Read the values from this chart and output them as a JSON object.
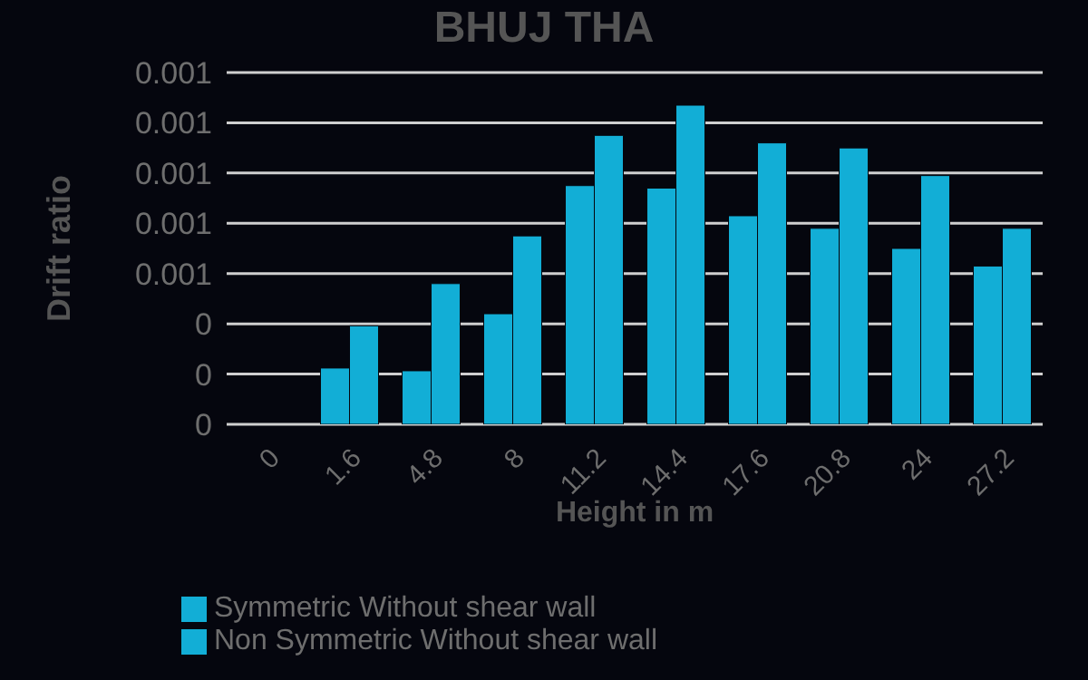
{
  "chart_data": {
    "type": "bar",
    "title": "BHUJ THA",
    "xlabel": "Height in m",
    "ylabel": "Drift ratio",
    "categories": [
      "0",
      "1.6",
      "4.8",
      "8",
      "11.2",
      "14.4",
      "17.6",
      "20.8",
      "24",
      "27.2"
    ],
    "series": [
      {
        "name": "Symmetric Without shear wall",
        "color": "#12aed6",
        "values": [
          0,
          0.000224,
          0.000213,
          0.00044,
          0.00095,
          0.00094,
          0.00083,
          0.00078,
          0.0007,
          0.00063
        ]
      },
      {
        "name": "Non Symmetric Without shear wall",
        "color": "#12aed6",
        "values": [
          0,
          0.000392,
          0.00056,
          0.00075,
          0.00115,
          0.00127,
          0.00112,
          0.0011,
          0.00099,
          0.00078
        ]
      }
    ],
    "ylim": [
      0,
      0.0014
    ],
    "yticks": [
      0,
      {
        "value": 0.0002,
        "label": "0"
      },
      {
        "value": 0.0004,
        "label": "0"
      },
      {
        "value": 0.0006,
        "label": "0.001"
      },
      {
        "value": 0.0008,
        "label": "0.001"
      },
      {
        "value": 0.001,
        "label": "0.001"
      },
      {
        "value": 0.0012,
        "label": "0.001"
      },
      {
        "value": 0.0014,
        "label": "0.001"
      }
    ],
    "grid": "y",
    "legend": "bottom"
  }
}
